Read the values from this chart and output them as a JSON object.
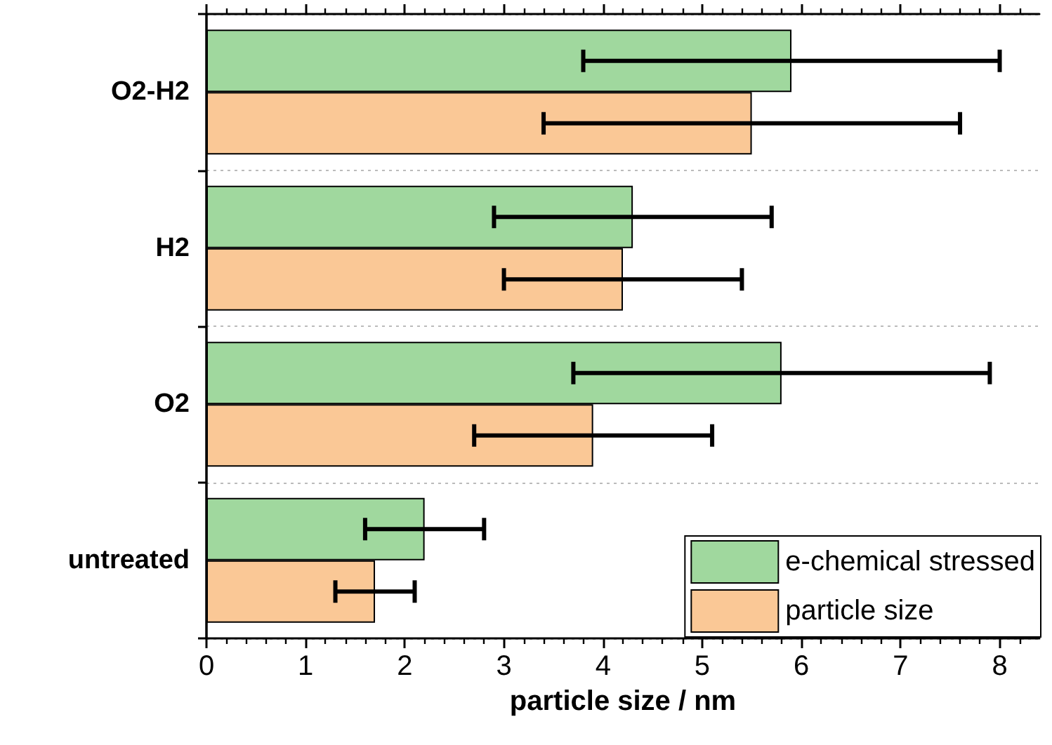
{
  "chart_data": {
    "type": "bar",
    "orientation": "horizontal",
    "xlabel": "particle size / nm",
    "categories": [
      "O2-H2",
      "H2",
      "O2",
      "untreated"
    ],
    "series": [
      {
        "name": "e-chemical stressed",
        "color": "#a0d89e",
        "values": [
          5.9,
          4.3,
          5.8,
          2.2
        ],
        "errors": [
          [
            3.8,
            8.0
          ],
          [
            2.9,
            5.7
          ],
          [
            3.7,
            7.9
          ],
          [
            1.6,
            2.8
          ]
        ]
      },
      {
        "name": "particle size",
        "color": "#fac896",
        "values": [
          5.5,
          4.2,
          3.9,
          1.7
        ],
        "errors": [
          [
            3.4,
            7.6
          ],
          [
            3.0,
            5.4
          ],
          [
            2.7,
            5.1
          ],
          [
            1.3,
            2.1
          ]
        ]
      }
    ],
    "xlim": [
      0,
      8.4
    ],
    "xticks": [
      0,
      1,
      2,
      3,
      4,
      5,
      6,
      7,
      8
    ],
    "grid": "y",
    "legend": "bottom right"
  }
}
